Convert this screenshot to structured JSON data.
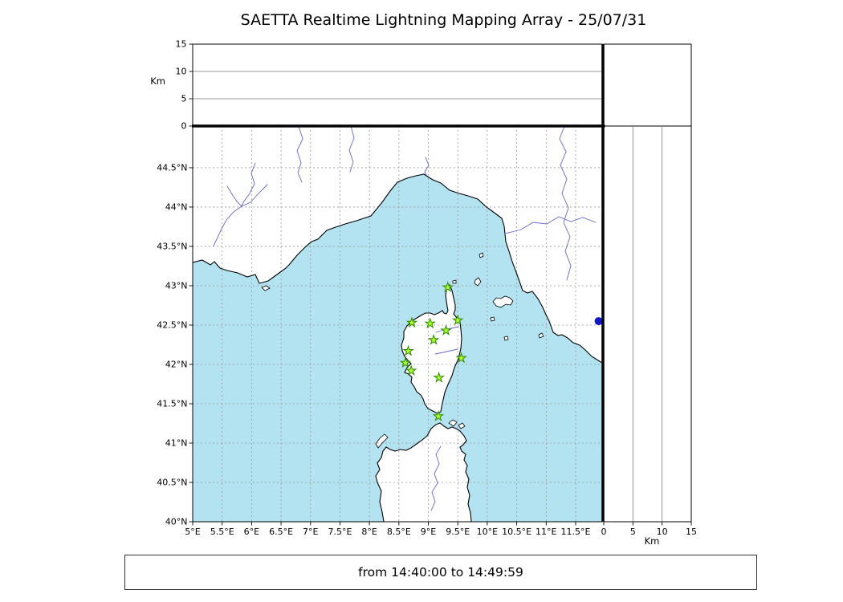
{
  "title": "SAETTA Realtime Lightning Mapping Array - 25/07/31",
  "footer": {
    "time_range": "from 14:40:00 to 14:49:59"
  },
  "axes": {
    "lon": {
      "values": [
        5,
        5.5,
        6,
        6.5,
        7,
        7.5,
        8,
        8.5,
        9,
        9.5,
        10,
        10.5,
        11,
        11.5
      ],
      "labels": [
        "5°E",
        "5.5°E",
        "6°E",
        "6.5°E",
        "7°E",
        "7.5°E",
        "8°E",
        "8.5°E",
        "9°E",
        "9.5°E",
        "10°E",
        "10.5°E",
        "11°E",
        "11.5°E"
      ]
    },
    "lat": {
      "values": [
        40,
        40.5,
        41,
        41.5,
        42,
        42.5,
        43,
        43.5,
        44,
        44.5
      ],
      "labels": [
        "40°N",
        "40.5°N",
        "41°N",
        "41.5°N",
        "42°N",
        "42.5°N",
        "43°N",
        "43.5°N",
        "44°N",
        "44.5°N"
      ]
    },
    "alt": {
      "values": [
        0,
        5,
        10,
        15
      ],
      "labels": [
        "0",
        "5",
        "10",
        "15"
      ],
      "unit": "Km"
    }
  },
  "chart_data": {
    "type": "scatter",
    "title": "SAETTA Realtime Lightning Mapping Array - 25/07/31",
    "time_window": {
      "from": "14:40:00",
      "to": "14:49:59"
    },
    "map_extent": {
      "lon_min": 5.0,
      "lon_max": 11.95,
      "lat_min": 40.0,
      "lat_max": 45.03
    },
    "altitude_km": {
      "min": 0,
      "max": 15,
      "ticks": [
        0,
        5,
        10,
        15
      ],
      "unit": "Km"
    },
    "stations": [
      {
        "lon": 9.33,
        "lat": 42.98
      },
      {
        "lon": 9.5,
        "lat": 42.56
      },
      {
        "lon": 8.72,
        "lat": 42.53
      },
      {
        "lon": 9.03,
        "lat": 42.52
      },
      {
        "lon": 9.3,
        "lat": 42.43
      },
      {
        "lon": 9.09,
        "lat": 42.31
      },
      {
        "lon": 8.66,
        "lat": 42.17
      },
      {
        "lon": 9.56,
        "lat": 42.08
      },
      {
        "lon": 8.61,
        "lat": 42.02
      },
      {
        "lon": 8.71,
        "lat": 41.92
      },
      {
        "lon": 9.18,
        "lat": 41.83
      },
      {
        "lon": 9.17,
        "lat": 41.34
      }
    ],
    "detections": [
      {
        "lon": 11.89,
        "lat": 42.55
      }
    ]
  },
  "colors": {
    "sea": "#b3e3f1",
    "land": "#ffffff",
    "coast": "#000000",
    "grid": "#999999",
    "river": "#6666cc",
    "station_fill": "#adff2f",
    "station_edge": "#2e8b00",
    "detection": "#1414c8"
  }
}
